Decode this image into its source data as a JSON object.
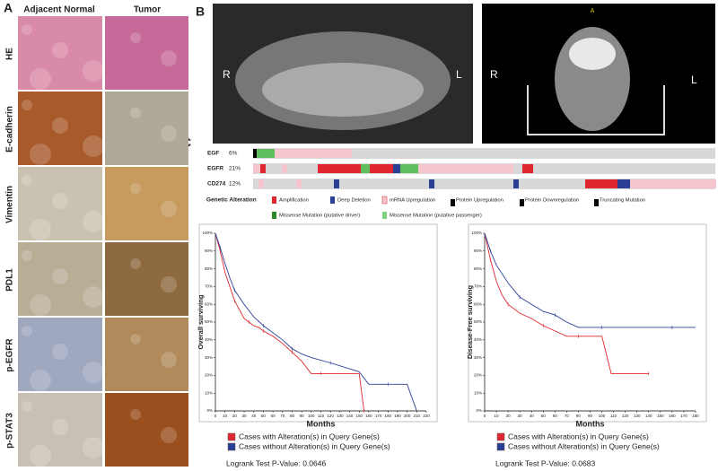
{
  "panel_a": {
    "label": "A",
    "columns": [
      "Adjacent Normal",
      "Tumor"
    ],
    "rows": [
      "HE",
      "E-cadherin",
      "Vimentin",
      "PDL1",
      "p-EGFR",
      "p-STAT3"
    ]
  },
  "panel_b": {
    "label": "B",
    "xray_left": "R",
    "xray_right": "L",
    "ct_left": "R",
    "ct_right": "L",
    "ct_top": "A"
  },
  "panel_c": {
    "label": "C",
    "genes": [
      {
        "name": "EGF",
        "percent": "6%"
      },
      {
        "name": "EGFR",
        "percent": "21%"
      },
      {
        "name": "CD274",
        "percent": "12%"
      }
    ],
    "legend_title": "Genetic Alteration",
    "legend": [
      "Amplification",
      "Deep Deletion",
      "mRNA Upregulation",
      "Protein Upregulation",
      "Protein Downregulation",
      "Truncating Mutation",
      "Missense Mutation (putative driver)",
      "Missense Mutation (putative passenger)"
    ]
  },
  "chart_data": [
    {
      "type": "line",
      "xlabel": "Months",
      "ylabel": "Overall surviving",
      "note": "Logrank Test P-Value: 0.0646",
      "xlim": [
        0,
        220
      ],
      "xticks": [
        0,
        10,
        20,
        30,
        40,
        50,
        60,
        70,
        80,
        90,
        100,
        110,
        120,
        130,
        140,
        150,
        160,
        170,
        180,
        190,
        200,
        210,
        220
      ],
      "ylim": [
        0,
        100
      ],
      "yticks": [
        {
          "value": 0,
          "label": "0%"
        },
        {
          "value": 10,
          "label": "10%"
        },
        {
          "value": 20,
          "label": "20%"
        },
        {
          "value": 30,
          "label": "30%"
        },
        {
          "value": 40,
          "label": "40%"
        },
        {
          "value": 50,
          "label": "50%"
        },
        {
          "value": 60,
          "label": "60%"
        },
        {
          "value": 70,
          "label": "70%"
        },
        {
          "value": 80,
          "label": "80%"
        },
        {
          "value": 90,
          "label": "90%"
        },
        {
          "value": 100,
          "label": "100%"
        }
      ],
      "series": [
        {
          "name": "Cases with Alteration(s) in Query Gene(s)",
          "color": "#e0262f",
          "x": [
            0,
            5,
            10,
            15,
            20,
            25,
            30,
            35,
            40,
            45,
            50,
            60,
            70,
            80,
            90,
            100,
            110,
            130,
            150,
            155
          ],
          "values": [
            100,
            90,
            78,
            70,
            62,
            57,
            52,
            50,
            48,
            47,
            45,
            42,
            38,
            33,
            28,
            21,
            21,
            21,
            21,
            0
          ]
        },
        {
          "name": "Cases without Alteration(s) in Query Gene(s)",
          "color": "#2b3f97",
          "x": [
            0,
            5,
            10,
            15,
            20,
            30,
            40,
            50,
            60,
            70,
            80,
            90,
            100,
            120,
            150,
            160,
            180,
            200,
            210
          ],
          "values": [
            100,
            92,
            83,
            75,
            68,
            60,
            53,
            48,
            44,
            40,
            35,
            32,
            30,
            27,
            22,
            15,
            15,
            15,
            0
          ]
        }
      ]
    },
    {
      "type": "line",
      "xlabel": "Months",
      "ylabel": "Disease-Free surviving",
      "note": "Logrank Test P-Value: 0.0683",
      "xlim": [
        0,
        180
      ],
      "xticks": [
        0,
        10,
        20,
        30,
        40,
        50,
        60,
        70,
        80,
        90,
        100,
        110,
        120,
        130,
        140,
        150,
        160,
        170,
        180
      ],
      "ylim": [
        0,
        100
      ],
      "yticks": [
        {
          "value": 0,
          "label": "0%"
        },
        {
          "value": 10,
          "label": "10%"
        },
        {
          "value": 20,
          "label": "20%"
        },
        {
          "value": 30,
          "label": "30%"
        },
        {
          "value": 40,
          "label": "40%"
        },
        {
          "value": 50,
          "label": "50%"
        },
        {
          "value": 60,
          "label": "60%"
        },
        {
          "value": 70,
          "label": "70%"
        },
        {
          "value": 80,
          "label": "80%"
        },
        {
          "value": 90,
          "label": "90%"
        },
        {
          "value": 100,
          "label": "100%"
        }
      ],
      "series": [
        {
          "name": "Cases with Alteration(s) in Query Gene(s)",
          "color": "#e0262f",
          "x": [
            0,
            5,
            10,
            15,
            20,
            30,
            40,
            50,
            60,
            70,
            80,
            100,
            108,
            140
          ],
          "values": [
            100,
            85,
            73,
            65,
            60,
            55,
            52,
            48,
            45,
            42,
            42,
            42,
            21,
            21
          ]
        },
        {
          "name": "Cases without Alteration(s) in Query Gene(s)",
          "color": "#2b3f97",
          "x": [
            0,
            5,
            10,
            20,
            30,
            40,
            50,
            60,
            70,
            80,
            100,
            120,
            140,
            160,
            180
          ],
          "values": [
            100,
            90,
            82,
            72,
            64,
            60,
            56,
            54,
            50,
            47,
            47,
            47,
            47,
            47,
            47
          ]
        }
      ]
    }
  ]
}
